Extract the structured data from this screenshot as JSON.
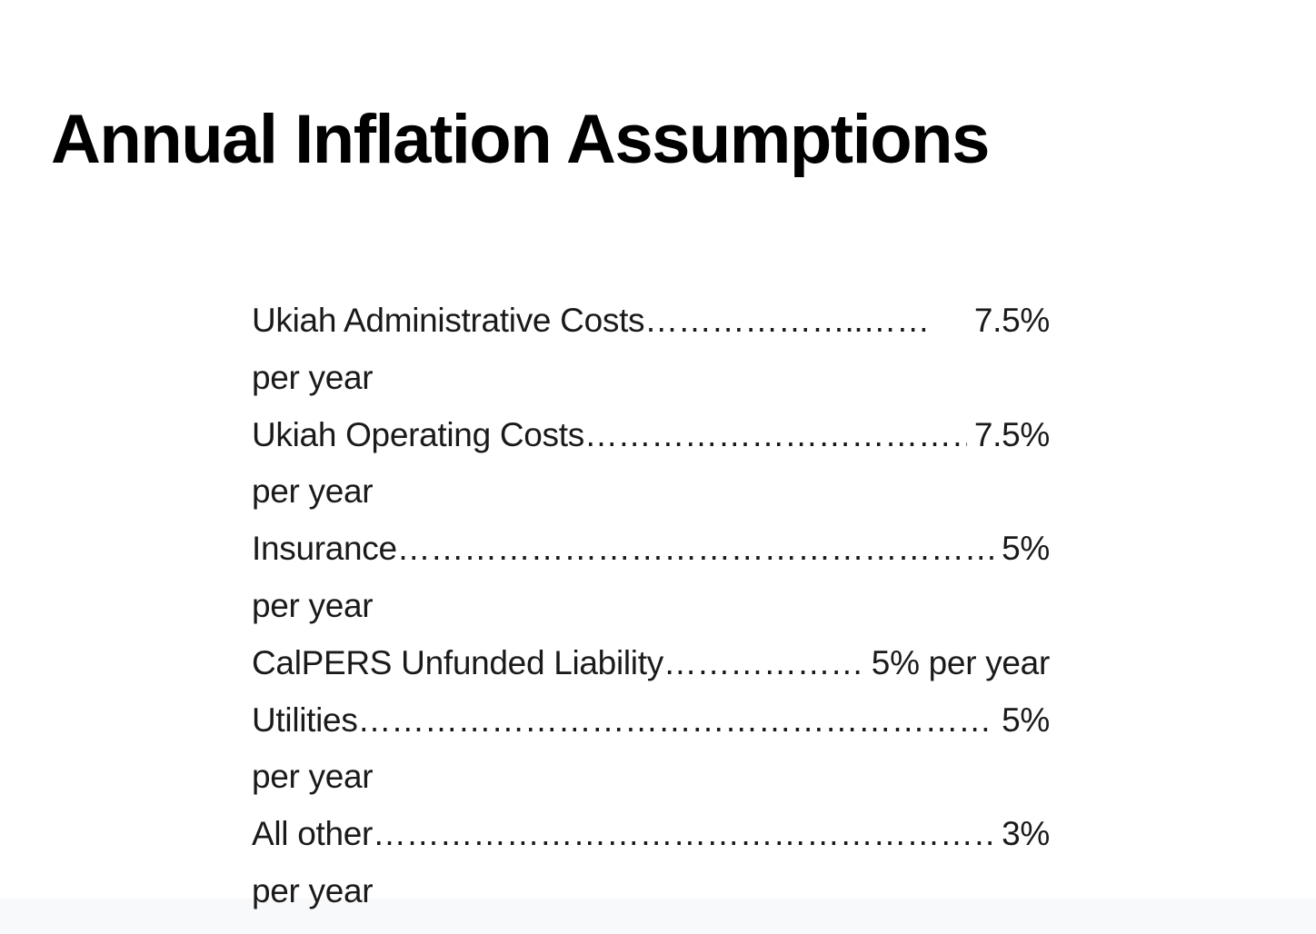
{
  "slide": {
    "title": "Annual Inflation Assumptions",
    "items": [
      {
        "label": "Ukiah Administrative Costs",
        "leader": "………………..……",
        "value": "7.5%",
        "wrap": "per year"
      },
      {
        "label": "Ukiah Operating Costs",
        "leader": "……………………………….",
        "value": "7.5%",
        "wrap": "per year"
      },
      {
        "label": "Insurance",
        "leader": "……………………………………………………….",
        "value": "5%",
        "wrap": "per year"
      },
      {
        "label": "CalPERS Unfunded Liability",
        "leader": "…………………….",
        "value": "5% per year",
        "wrap": ""
      },
      {
        "label": "Utilities",
        "leader": "………………………………………………………..",
        "value": "5%",
        "wrap": "per year"
      },
      {
        "label": "All other",
        "leader": "………………………………………………………",
        "value": "3%",
        "wrap": "per year"
      }
    ]
  },
  "colors": {
    "background": "#ffffff",
    "title_text": "#000000",
    "body_text": "#1a1a1a",
    "footer_band": "#f8f9fb"
  }
}
